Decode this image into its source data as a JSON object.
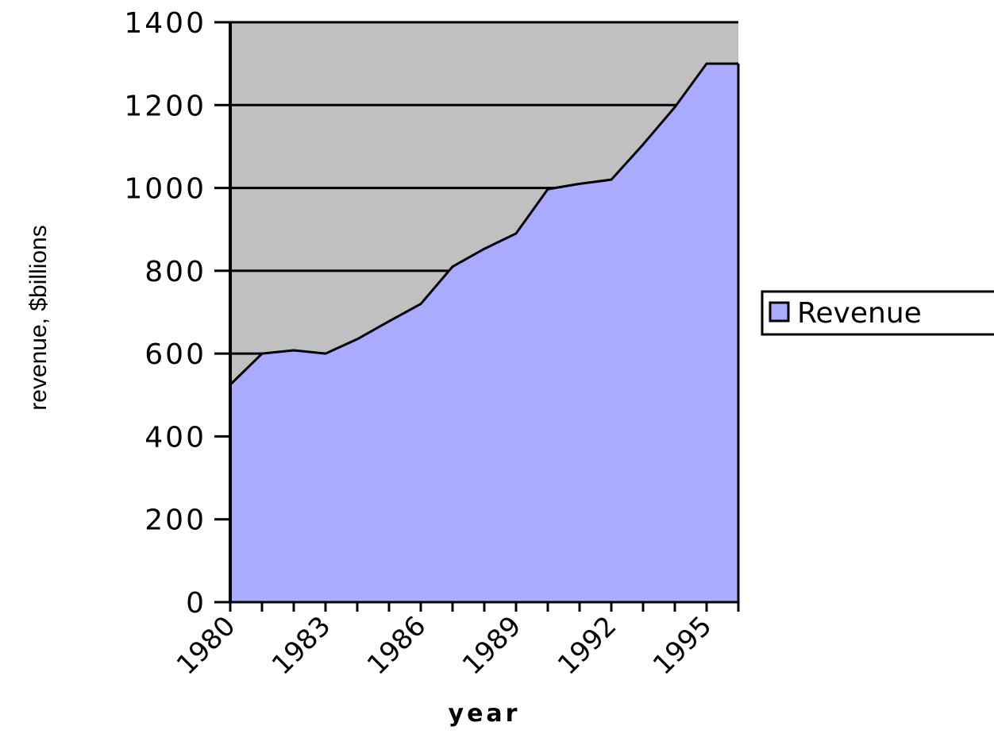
{
  "chart_data": {
    "type": "area",
    "x": [
      1980,
      1981,
      1982,
      1983,
      1984,
      1985,
      1986,
      1987,
      1988,
      1989,
      1990,
      1991,
      1992,
      1993,
      1994,
      1995,
      1996
    ],
    "x_tick_labels": [
      "1980",
      "1983",
      "1986",
      "1989",
      "1992",
      "1995"
    ],
    "series": [
      {
        "name": "Revenue",
        "values": [
          525,
          600,
          608,
          600,
          635,
          678,
          720,
          810,
          853,
          890,
          997,
          1010,
          1020,
          1105,
          1195,
          1300,
          1300
        ],
        "color": "#aaaaff"
      }
    ],
    "xlabel": "year",
    "ylabel": "revenue,  $billions",
    "ylim": [
      0,
      1400
    ],
    "y_ticks": [
      0,
      200,
      400,
      600,
      800,
      1000,
      1200,
      1400
    ],
    "grid": "horizontal",
    "plot_background": "#c0c0c0",
    "legend_position": "right"
  }
}
